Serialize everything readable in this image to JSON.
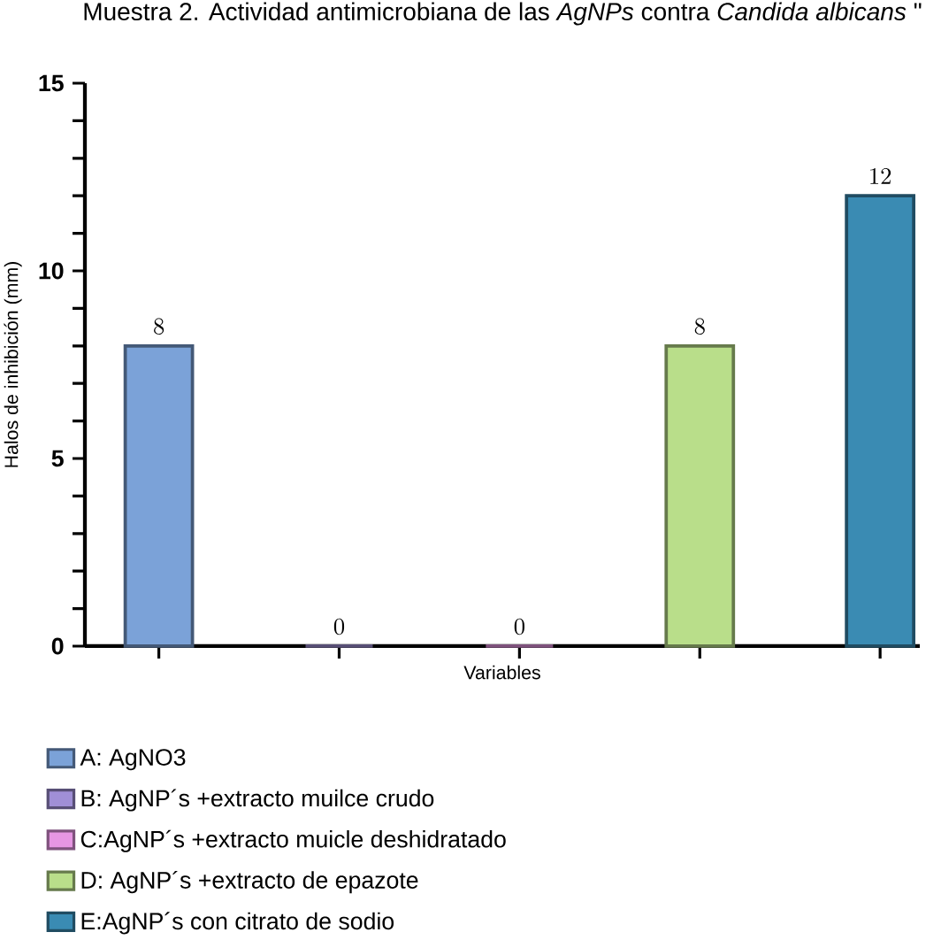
{
  "chart_data": {
    "type": "bar",
    "title": "Muestra 2. Actividad antimicrobiana de las *AgNPs* contra *Candida albicans*  \"",
    "xlabel": "Variables",
    "ylabel": "Halos de inhibición (mm)",
    "categories": [
      null,
      null,
      null,
      null,
      null
    ],
    "series": [
      {
        "name": "A: AgNO3",
        "color": "#7ba2d8",
        "values": [
          8,
          null,
          null,
          null,
          null
        ]
      },
      {
        "name": "B: AgNP´s +extracto muilce crudo",
        "color": "#a08fd6",
        "values": [
          null,
          0,
          null,
          null,
          null
        ]
      },
      {
        "name": "C:AgNP´s +extracto muicle deshidratado",
        "color": "#e796e3",
        "values": [
          null,
          null,
          0,
          null,
          null
        ]
      },
      {
        "name": "D: AgNP´s +extracto de epazote",
        "color": "#b9de8a",
        "values": [
          null,
          null,
          null,
          8,
          null
        ]
      },
      {
        "name": "E:AgNP´s con citrato de sodio",
        "color": "#3a8bb3",
        "values": [
          null,
          null,
          null,
          null,
          12
        ]
      }
    ],
    "ylim": [
      0,
      15
    ],
    "yticks": [
      0,
      5,
      10,
      15
    ],
    "data_labels": true,
    "legend": "bottom",
    "grid": false
  }
}
